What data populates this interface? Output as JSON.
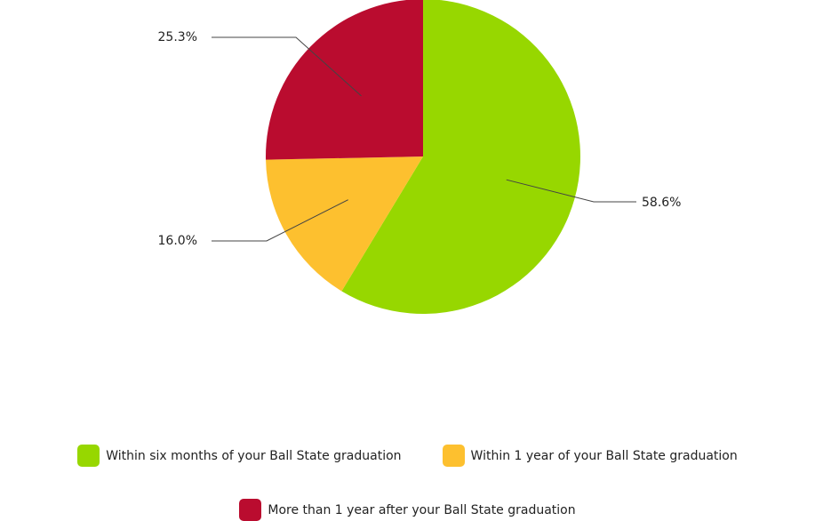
{
  "chart_data": {
    "type": "pie",
    "title": "",
    "categories": [
      "Within six months of your Ball State graduation",
      "Within 1 year of your Ball State graduation",
      "More than 1 year after your Ball State graduation"
    ],
    "values": [
      58.6,
      16.0,
      25.3
    ],
    "value_labels": [
      "58.6%",
      "16.0%",
      "25.3%"
    ],
    "colors": [
      "#97d700",
      "#fdc02f",
      "#ba0c2f"
    ],
    "legend": "bottom"
  }
}
